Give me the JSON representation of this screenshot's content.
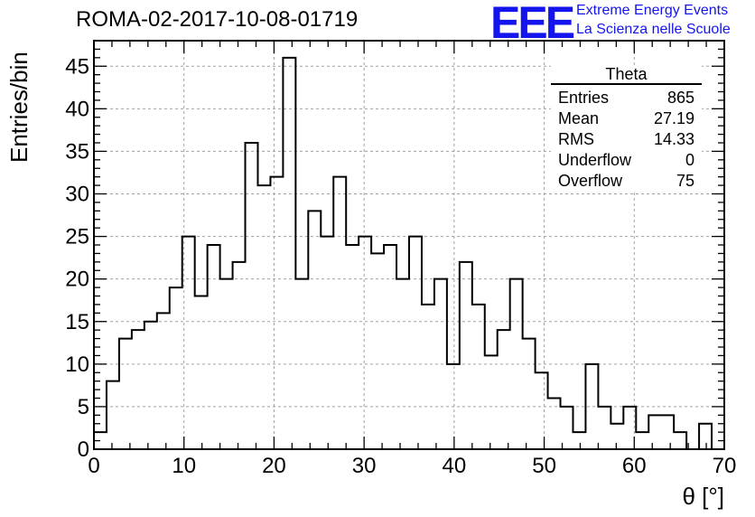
{
  "header": {
    "title": "ROMA-02-2017-10-08-01719",
    "logo_mark": "EEE",
    "logo_line1": "Extreme Energy Events",
    "logo_line2": "La Scienza nelle Scuole",
    "logo_color": "#1414ee"
  },
  "stats": {
    "name": "Theta",
    "rows": [
      {
        "label": "Entries",
        "value": "865"
      },
      {
        "label": "Mean",
        "value": "27.19"
      },
      {
        "label": "RMS",
        "value": "14.33"
      },
      {
        "label": "Underflow",
        "value": "0"
      },
      {
        "label": "Overflow",
        "value": "75"
      }
    ]
  },
  "chart_data": {
    "type": "bar",
    "histogram": true,
    "title": "ROMA-02-2017-10-08-01719",
    "xlabel": "θ [°]",
    "ylabel": "Entries/bin",
    "xlim": [
      0,
      70
    ],
    "ylim": [
      0,
      48
    ],
    "grid": true,
    "x_ticks": [
      0,
      10,
      20,
      30,
      40,
      50,
      60,
      70
    ],
    "y_ticks": [
      0,
      5,
      10,
      15,
      20,
      25,
      30,
      35,
      40,
      45
    ],
    "bin_width": 1.4,
    "values": [
      2,
      8,
      13,
      14,
      15,
      16,
      19,
      25,
      18,
      24,
      20,
      22,
      36,
      31,
      32,
      46,
      20,
      28,
      25,
      32,
      24,
      25,
      23,
      24,
      20,
      25,
      17,
      20,
      10,
      22,
      17,
      11,
      14,
      20,
      13,
      9,
      6,
      5,
      2,
      10,
      5,
      3,
      5,
      2,
      4,
      4,
      2,
      0,
      3,
      0
    ]
  }
}
